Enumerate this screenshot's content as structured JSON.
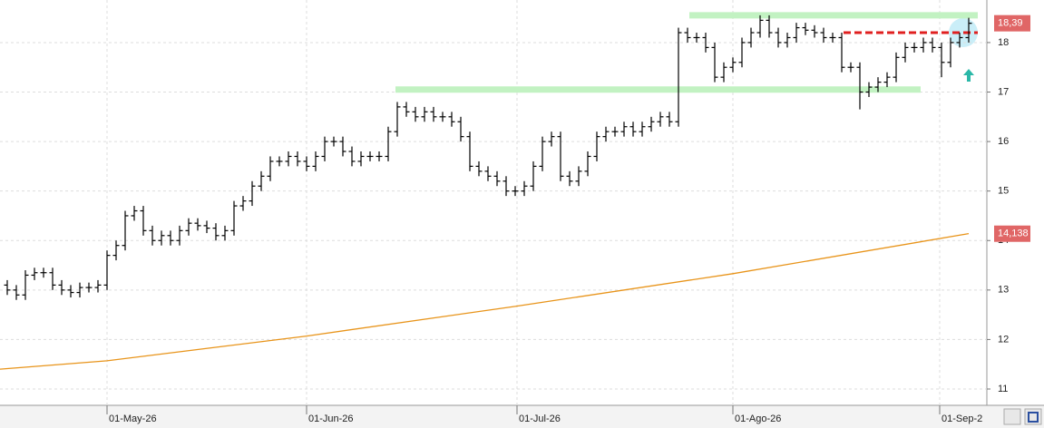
{
  "chart_data": {
    "type": "ohlc",
    "color": "#000000",
    "xlim": [
      -0.8,
      108
    ],
    "ylim": [
      10.67,
      18.86
    ],
    "yticks": [
      11,
      12,
      13,
      14,
      15,
      16,
      17,
      18
    ],
    "xticks": [
      {
        "value": 11,
        "label": "01-May-26"
      },
      {
        "value": 33,
        "label": "01-Jun-26"
      },
      {
        "value": 56.2,
        "label": "01-Jul-26"
      },
      {
        "value": 80,
        "label": "01-Ago-26"
      },
      {
        "value": 102.8,
        "label": "01-Sep-2"
      }
    ],
    "grid": true,
    "open": [
      13.1,
      13.0,
      12.9,
      13.3,
      13.35,
      13.35,
      13.1,
      13.0,
      12.95,
      13.05,
      13.05,
      13.1,
      13.7,
      13.9,
      14.5,
      14.6,
      14.2,
      14.0,
      14.1,
      14.0,
      14.2,
      14.35,
      14.3,
      14.25,
      14.1,
      14.2,
      14.7,
      14.8,
      15.1,
      15.3,
      15.6,
      15.6,
      15.7,
      15.6,
      15.5,
      15.7,
      16.0,
      16.0,
      15.8,
      15.6,
      15.7,
      15.7,
      15.7,
      16.2,
      16.7,
      16.6,
      16.5,
      16.6,
      16.5,
      16.5,
      16.4,
      16.1,
      15.5,
      15.4,
      15.3,
      15.2,
      15.0,
      15.0,
      15.1,
      15.5,
      16.0,
      16.1,
      15.3,
      15.2,
      15.4,
      15.7,
      16.1,
      16.2,
      16.2,
      16.3,
      16.2,
      16.3,
      16.4,
      16.5,
      16.4,
      18.2,
      18.1,
      18.1,
      17.9,
      17.3,
      17.5,
      17.6,
      18.0,
      18.2,
      18.45,
      18.2,
      18.0,
      18.1,
      18.3,
      18.25,
      18.2,
      18.1,
      18.1,
      17.5,
      17.5,
      17.0,
      17.1,
      17.2,
      17.3,
      17.7,
      17.9,
      17.9,
      18.0,
      17.9,
      17.6,
      18.0,
      18.1
    ],
    "high": [
      13.2,
      13.1,
      13.4,
      13.45,
      13.45,
      13.45,
      13.2,
      13.1,
      13.15,
      13.15,
      13.2,
      13.8,
      14.0,
      14.6,
      14.7,
      14.7,
      14.3,
      14.2,
      14.2,
      14.3,
      14.45,
      14.45,
      14.4,
      14.35,
      14.3,
      14.8,
      14.9,
      15.2,
      15.4,
      15.7,
      15.7,
      15.8,
      15.8,
      15.7,
      15.8,
      16.1,
      16.1,
      16.1,
      15.9,
      15.8,
      15.8,
      15.8,
      16.3,
      16.8,
      16.8,
      16.7,
      16.7,
      16.7,
      16.6,
      16.6,
      16.5,
      16.2,
      15.6,
      15.5,
      15.4,
      15.3,
      15.1,
      15.2,
      15.6,
      16.1,
      16.2,
      16.2,
      15.4,
      15.5,
      15.8,
      16.2,
      16.3,
      16.3,
      16.4,
      16.4,
      16.4,
      16.5,
      16.6,
      16.6,
      18.3,
      18.3,
      18.2,
      18.2,
      18.0,
      17.6,
      17.7,
      18.1,
      18.3,
      18.55,
      18.55,
      18.3,
      18.2,
      18.4,
      18.4,
      18.35,
      18.3,
      18.2,
      18.2,
      17.6,
      17.6,
      17.2,
      17.3,
      17.4,
      17.8,
      18.0,
      18.0,
      18.1,
      18.1,
      18.0,
      18.1,
      18.2,
      18.5
    ],
    "low": [
      12.9,
      12.8,
      12.8,
      13.2,
      13.25,
      13.0,
      12.9,
      12.85,
      12.85,
      12.95,
      12.95,
      13.0,
      13.6,
      13.8,
      14.4,
      14.1,
      13.9,
      13.9,
      13.9,
      13.9,
      14.1,
      14.2,
      14.15,
      14.0,
      14.0,
      14.1,
      14.6,
      14.7,
      15.0,
      15.2,
      15.5,
      15.5,
      15.5,
      15.4,
      15.4,
      15.6,
      15.9,
      15.7,
      15.5,
      15.5,
      15.6,
      15.6,
      15.6,
      16.1,
      16.5,
      16.4,
      16.4,
      16.4,
      16.4,
      16.3,
      16.0,
      15.4,
      15.3,
      15.2,
      15.1,
      14.9,
      14.9,
      14.9,
      15.0,
      15.4,
      15.9,
      15.2,
      15.1,
      15.1,
      15.3,
      15.6,
      16.0,
      16.1,
      16.1,
      16.1,
      16.1,
      16.2,
      16.3,
      16.3,
      16.3,
      18.0,
      18.0,
      17.8,
      17.2,
      17.2,
      17.4,
      17.5,
      17.9,
      18.1,
      18.1,
      17.9,
      17.9,
      18.0,
      18.15,
      18.1,
      18.0,
      18.0,
      17.4,
      17.4,
      16.65,
      16.9,
      17.0,
      17.1,
      17.2,
      17.6,
      17.8,
      17.8,
      17.8,
      17.3,
      17.5,
      17.9,
      18.0
    ],
    "close": [
      13.0,
      12.9,
      13.3,
      13.35,
      13.35,
      13.1,
      13.0,
      12.95,
      13.05,
      13.05,
      13.1,
      13.7,
      13.9,
      14.5,
      14.6,
      14.2,
      14.0,
      14.1,
      14.0,
      14.2,
      14.35,
      14.3,
      14.25,
      14.1,
      14.2,
      14.7,
      14.8,
      15.1,
      15.3,
      15.6,
      15.6,
      15.7,
      15.6,
      15.5,
      15.7,
      16.0,
      16.0,
      15.8,
      15.6,
      15.7,
      15.7,
      15.7,
      16.2,
      16.7,
      16.6,
      16.5,
      16.6,
      16.5,
      16.5,
      16.4,
      16.1,
      15.5,
      15.4,
      15.3,
      15.2,
      15.0,
      15.0,
      15.1,
      15.5,
      16.0,
      16.1,
      15.3,
      15.2,
      15.4,
      15.7,
      16.1,
      16.2,
      16.2,
      16.3,
      16.2,
      16.3,
      16.4,
      16.5,
      16.4,
      18.2,
      18.1,
      18.1,
      17.9,
      17.3,
      17.5,
      17.6,
      18.0,
      18.2,
      18.45,
      18.2,
      18.0,
      18.1,
      18.3,
      18.25,
      18.2,
      18.1,
      18.1,
      17.5,
      17.5,
      17.0,
      17.1,
      17.2,
      17.3,
      17.7,
      17.9,
      17.9,
      18.0,
      17.9,
      17.6,
      18.0,
      18.1,
      18.39
    ],
    "ma": {
      "color": "#e8941a",
      "x": [
        -0.8,
        11,
        33,
        56,
        80,
        106
      ],
      "values": [
        11.4,
        11.57,
        12.07,
        12.67,
        13.33,
        14.14
      ]
    },
    "levels": [
      {
        "value": 18.55,
        "from": 75.2,
        "to": 107,
        "color": "#c2f2c2",
        "dashed": false
      },
      {
        "value": 17.05,
        "from": 42.8,
        "to": 100.7,
        "color": "#c2f2c2",
        "dashed": false
      },
      {
        "value": 18.2,
        "from": 92.2,
        "to": 107,
        "color": "#e02020",
        "dashed": true
      }
    ],
    "last_price": {
      "value": 18.39,
      "label": "18,39"
    },
    "ma_last": {
      "value": 14.138,
      "label": "14,138"
    }
  }
}
